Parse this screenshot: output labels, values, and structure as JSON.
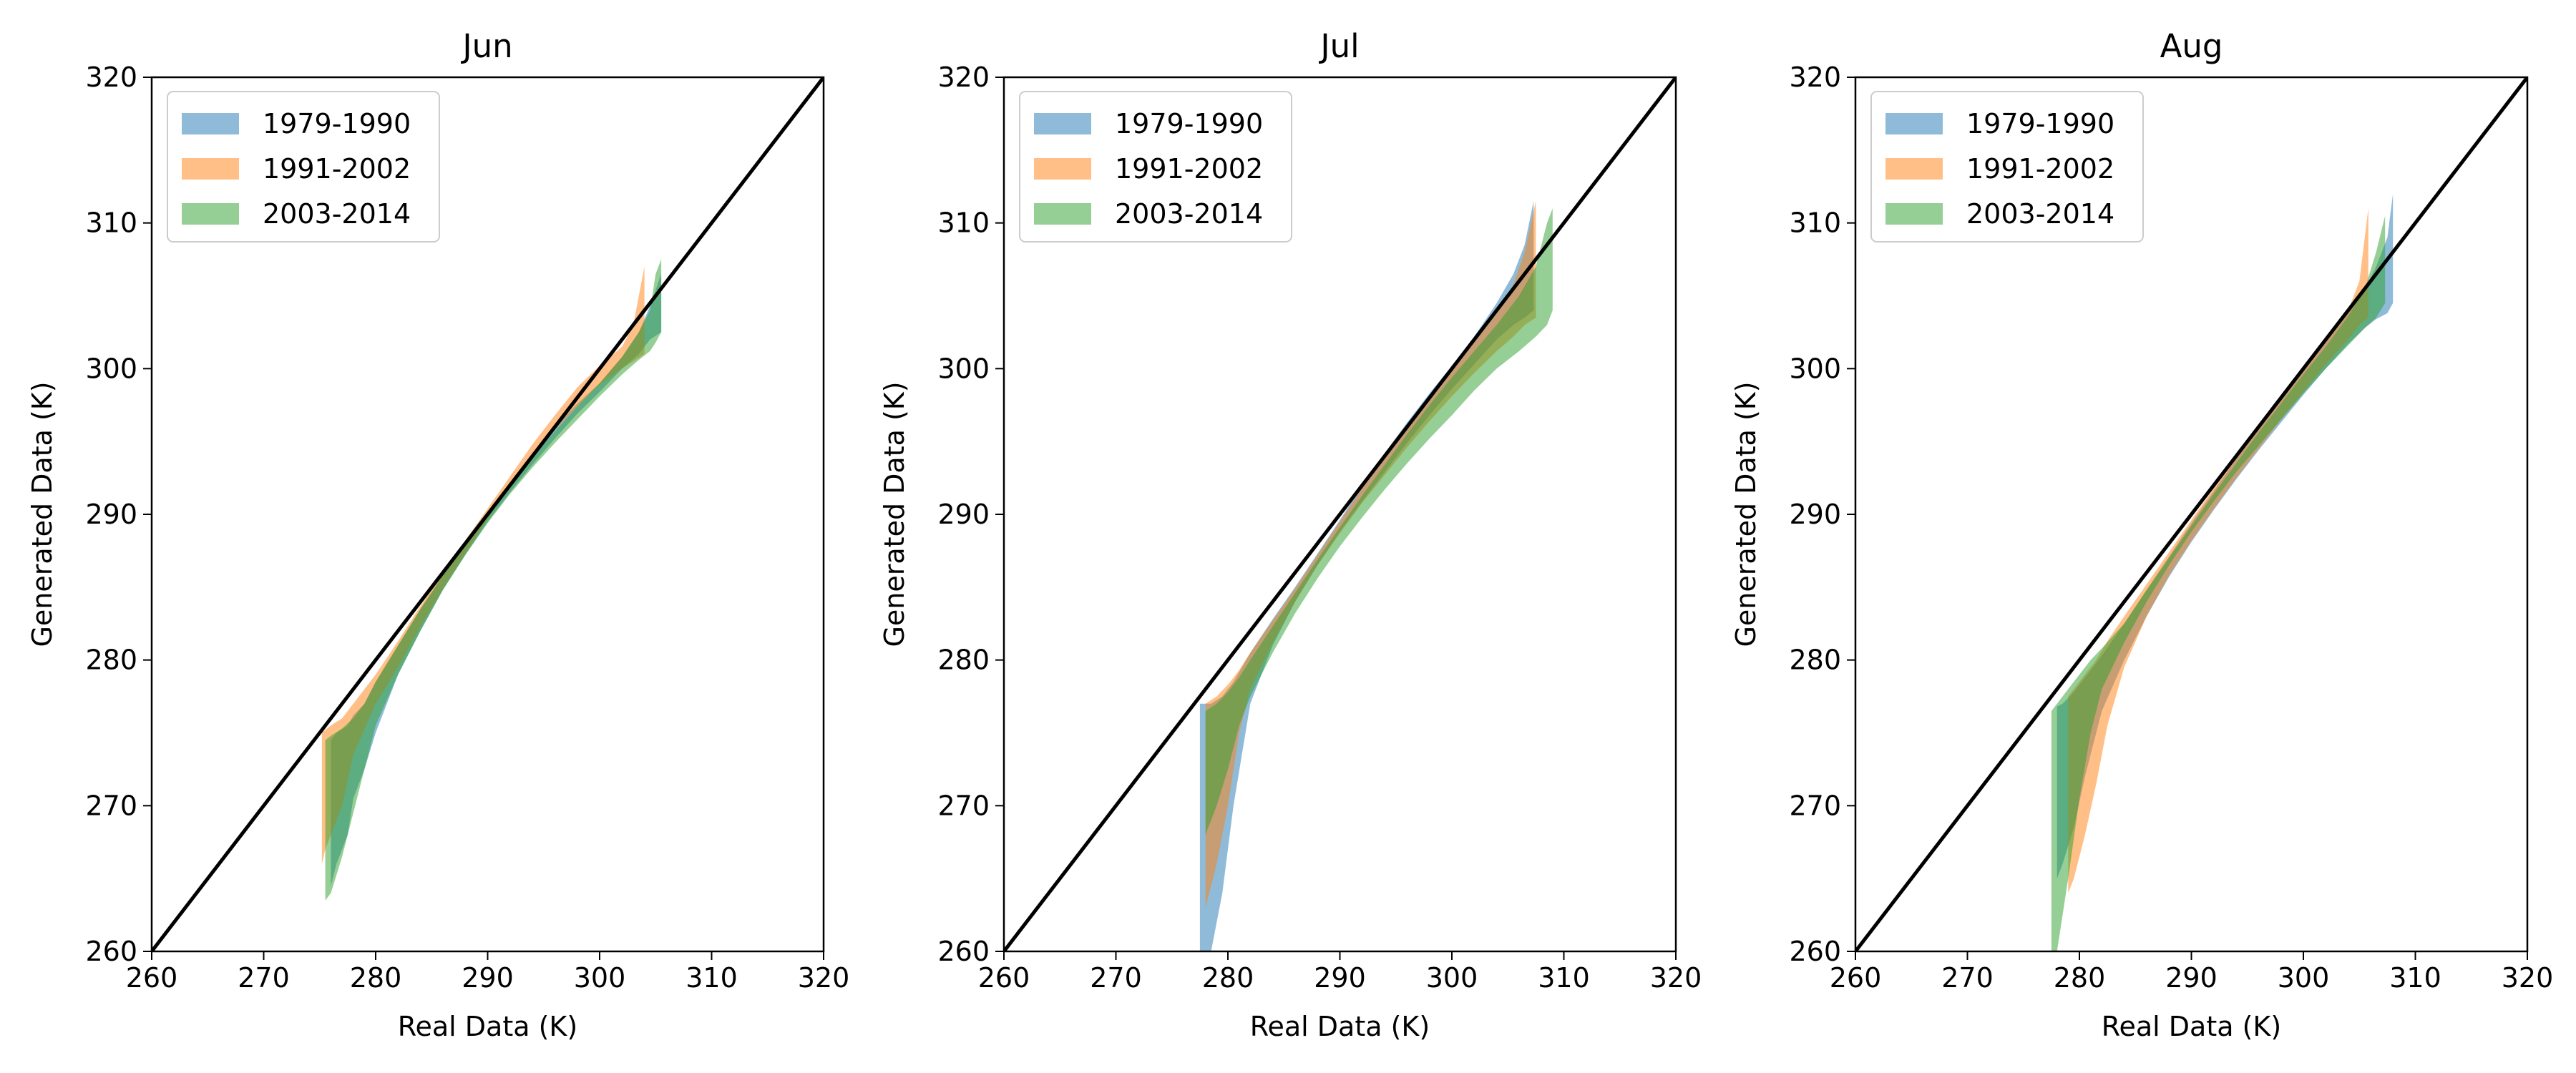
{
  "chart_data": [
    {
      "type": "area",
      "title": "Jun",
      "xlabel": "Real Data (K)",
      "ylabel": "Generated Data (K)",
      "xlim": [
        260,
        320
      ],
      "ylim": [
        260,
        320
      ],
      "xticks": [
        "260",
        "270",
        "280",
        "290",
        "300",
        "310",
        "320"
      ],
      "yticks": [
        "260",
        "270",
        "280",
        "290",
        "300",
        "310",
        "320"
      ],
      "grid": false,
      "legend_position": "top-left",
      "reference_line": "y = x",
      "series": [
        {
          "name": "1979-1990",
          "color": "#1f77b4",
          "x": [
            276.0,
            276.5,
            277.5,
            278.0,
            279.0,
            280.0,
            282.0,
            284.0,
            286.0,
            288.0,
            290.0,
            292.0,
            294.0,
            296.0,
            298.0,
            300.0,
            302.0,
            303.5,
            304.5,
            305.5
          ],
          "upper": [
            274.5,
            275.0,
            275.5,
            276.2,
            277.0,
            278.5,
            281.0,
            283.5,
            285.8,
            288.0,
            290.0,
            292.2,
            294.2,
            296.0,
            297.6,
            299.0,
            300.8,
            302.5,
            304.3,
            306.5
          ],
          "lower": [
            264.5,
            266.0,
            268.0,
            270.5,
            272.5,
            275.0,
            279.0,
            282.0,
            284.8,
            287.2,
            289.5,
            291.5,
            293.4,
            295.2,
            296.9,
            298.4,
            300.0,
            301.0,
            302.0,
            302.5
          ]
        },
        {
          "name": "1991-2002",
          "color": "#ff7f0e",
          "x": [
            275.2,
            275.5,
            276.0,
            277.0,
            278.0,
            280.0,
            282.0,
            284.0,
            286.0,
            288.0,
            290.0,
            292.0,
            294.0,
            296.0,
            298.0,
            300.0,
            302.0,
            303.0,
            304.0
          ],
          "upper": [
            275.0,
            275.2,
            275.5,
            276.0,
            277.0,
            279.0,
            281.3,
            283.7,
            286.0,
            288.2,
            290.4,
            292.6,
            294.8,
            296.8,
            298.7,
            300.2,
            301.5,
            303.0,
            307.0
          ],
          "lower": [
            266.0,
            267.0,
            268.0,
            270.0,
            273.5,
            277.0,
            279.5,
            282.3,
            284.9,
            287.3,
            289.7,
            291.9,
            294.0,
            295.8,
            297.4,
            298.9,
            300.0,
            300.5,
            301.0
          ]
        },
        {
          "name": "2003-2014",
          "color": "#2ca02c",
          "x": [
            275.5,
            276.0,
            277.0,
            278.0,
            279.0,
            280.0,
            282.0,
            284.0,
            286.0,
            288.0,
            290.0,
            292.0,
            294.0,
            296.0,
            298.0,
            300.0,
            302.0,
            303.5,
            304.5,
            305.0,
            305.5
          ],
          "upper": [
            274.5,
            274.8,
            275.3,
            276.0,
            277.0,
            278.5,
            281.0,
            283.5,
            285.8,
            288.0,
            290.0,
            292.0,
            293.9,
            295.7,
            297.4,
            299.0,
            300.8,
            302.5,
            304.0,
            306.5,
            307.5
          ],
          "lower": [
            263.5,
            264.0,
            266.5,
            269.5,
            272.5,
            275.5,
            279.0,
            282.0,
            284.8,
            287.2,
            289.4,
            291.4,
            293.2,
            294.9,
            296.5,
            298.1,
            299.6,
            300.6,
            301.2,
            301.8,
            302.5
          ]
        }
      ]
    },
    {
      "type": "area",
      "title": "Jul",
      "xlabel": "Real Data (K)",
      "ylabel": "Generated Data (K)",
      "xlim": [
        260,
        320
      ],
      "ylim": [
        260,
        320
      ],
      "xticks": [
        "260",
        "270",
        "280",
        "290",
        "300",
        "310",
        "320"
      ],
      "yticks": [
        "260",
        "270",
        "280",
        "290",
        "300",
        "310",
        "320"
      ],
      "grid": false,
      "legend_position": "top-left",
      "reference_line": "y = x",
      "series": [
        {
          "name": "1979-1990",
          "color": "#1f77b4",
          "x": [
            277.5,
            278.5,
            279.5,
            280.5,
            282.0,
            284.0,
            286.0,
            288.0,
            290.0,
            292.0,
            294.0,
            296.0,
            298.0,
            300.0,
            302.0,
            304.0,
            305.5,
            306.5,
            307.3
          ],
          "upper": [
            277.0,
            277.0,
            277.5,
            278.5,
            280.5,
            282.8,
            285.0,
            287.3,
            289.6,
            292.0,
            294.2,
            296.3,
            298.3,
            300.2,
            302.2,
            304.5,
            306.5,
            308.5,
            311.5
          ],
          "lower": [
            260.0,
            260.0,
            264.0,
            270.0,
            277.0,
            281.0,
            284.0,
            286.5,
            288.8,
            290.9,
            292.9,
            294.9,
            296.8,
            298.6,
            300.3,
            302.0,
            303.0,
            303.5,
            304.0
          ]
        },
        {
          "name": "1991-2002",
          "color": "#ff7f0e",
          "x": [
            278.0,
            279.0,
            280.0,
            281.0,
            282.0,
            284.0,
            286.0,
            288.0,
            290.0,
            292.0,
            294.0,
            296.0,
            298.0,
            300.0,
            302.0,
            304.0,
            305.5,
            306.5,
            307.5
          ],
          "upper": [
            277.0,
            277.5,
            278.3,
            279.3,
            280.5,
            282.7,
            284.9,
            287.2,
            289.5,
            291.8,
            294.0,
            296.0,
            298.0,
            300.0,
            301.8,
            303.8,
            305.8,
            308.0,
            311.5
          ],
          "lower": [
            263.0,
            266.0,
            270.0,
            275.0,
            278.0,
            281.2,
            284.0,
            286.5,
            288.7,
            290.8,
            292.7,
            294.6,
            296.4,
            298.1,
            299.7,
            301.2,
            302.2,
            303.0,
            303.5
          ]
        },
        {
          "name": "2003-2014",
          "color": "#2ca02c",
          "x": [
            278.0,
            279.0,
            280.0,
            281.0,
            282.0,
            284.0,
            286.0,
            288.0,
            290.0,
            292.0,
            294.0,
            296.0,
            298.0,
            300.0,
            302.0,
            304.0,
            306.0,
            307.5,
            308.5,
            309.0
          ],
          "upper": [
            276.5,
            277.0,
            277.8,
            278.8,
            280.0,
            282.3,
            284.6,
            286.9,
            289.1,
            291.3,
            293.4,
            295.5,
            297.5,
            299.4,
            301.2,
            303.0,
            305.0,
            307.0,
            310.0,
            311.0
          ],
          "lower": [
            268.0,
            270.0,
            272.5,
            275.5,
            277.5,
            280.5,
            283.2,
            285.6,
            287.8,
            289.8,
            291.7,
            293.5,
            295.2,
            296.8,
            298.5,
            300.0,
            301.2,
            302.2,
            303.0,
            304.0
          ]
        }
      ]
    },
    {
      "type": "area",
      "title": "Aug",
      "xlabel": "Real Data (K)",
      "ylabel": "Generated Data (K)",
      "xlim": [
        260,
        320
      ],
      "ylim": [
        260,
        320
      ],
      "xticks": [
        "260",
        "270",
        "280",
        "290",
        "300",
        "310",
        "320"
      ],
      "yticks": [
        "260",
        "270",
        "280",
        "290",
        "300",
        "310",
        "320"
      ],
      "grid": false,
      "legend_position": "top-left",
      "reference_line": "y = x",
      "series": [
        {
          "name": "1979-1990",
          "color": "#1f77b4",
          "x": [
            278.0,
            278.5,
            279.5,
            280.5,
            282.0,
            284.0,
            286.0,
            288.0,
            290.0,
            292.0,
            294.0,
            296.0,
            298.0,
            300.0,
            302.0,
            304.0,
            305.5,
            306.5,
            307.5,
            308.0
          ],
          "upper": [
            276.8,
            277.0,
            277.8,
            278.8,
            280.3,
            282.5,
            284.8,
            287.1,
            289.4,
            291.6,
            293.8,
            295.9,
            297.9,
            299.9,
            301.8,
            303.8,
            305.5,
            307.0,
            309.0,
            312.0
          ],
          "lower": [
            265.0,
            266.0,
            268.5,
            272.0,
            276.5,
            280.0,
            283.0,
            285.7,
            288.1,
            290.3,
            292.4,
            294.4,
            296.3,
            298.2,
            300.0,
            301.7,
            302.8,
            303.4,
            303.8,
            304.5
          ]
        },
        {
          "name": "1991-2002",
          "color": "#ff7f0e",
          "x": [
            279.0,
            279.5,
            280.5,
            281.5,
            282.5,
            284.0,
            286.0,
            288.0,
            290.0,
            292.0,
            294.0,
            296.0,
            298.0,
            300.0,
            302.0,
            304.0,
            305.0,
            305.8
          ],
          "upper": [
            277.5,
            278.0,
            279.0,
            280.0,
            281.3,
            283.0,
            285.2,
            287.4,
            289.6,
            291.8,
            294.0,
            296.1,
            298.1,
            300.1,
            302.0,
            304.0,
            306.0,
            311.0
          ],
          "lower": [
            264.0,
            265.0,
            268.0,
            271.5,
            275.5,
            279.5,
            283.0,
            285.8,
            288.2,
            290.4,
            292.5,
            294.5,
            296.5,
            298.4,
            300.3,
            302.0,
            303.0,
            303.5
          ]
        },
        {
          "name": "2003-2014",
          "color": "#2ca02c",
          "x": [
            277.5,
            278.0,
            279.0,
            280.0,
            281.0,
            282.0,
            284.0,
            286.0,
            288.0,
            290.0,
            292.0,
            294.0,
            296.0,
            298.0,
            300.0,
            302.0,
            304.0,
            305.5,
            306.5,
            307.3
          ],
          "upper": [
            276.5,
            277.0,
            278.0,
            279.0,
            280.0,
            280.8,
            282.5,
            284.8,
            287.0,
            289.2,
            291.4,
            293.5,
            295.6,
            297.6,
            299.6,
            301.5,
            303.6,
            305.5,
            308.0,
            310.5
          ],
          "lower": [
            260.0,
            260.0,
            265.0,
            270.5,
            275.0,
            278.0,
            281.2,
            284.0,
            286.5,
            288.8,
            290.9,
            292.9,
            294.7,
            296.5,
            298.3,
            300.0,
            301.6,
            302.8,
            303.5,
            304.5
          ]
        }
      ]
    }
  ]
}
